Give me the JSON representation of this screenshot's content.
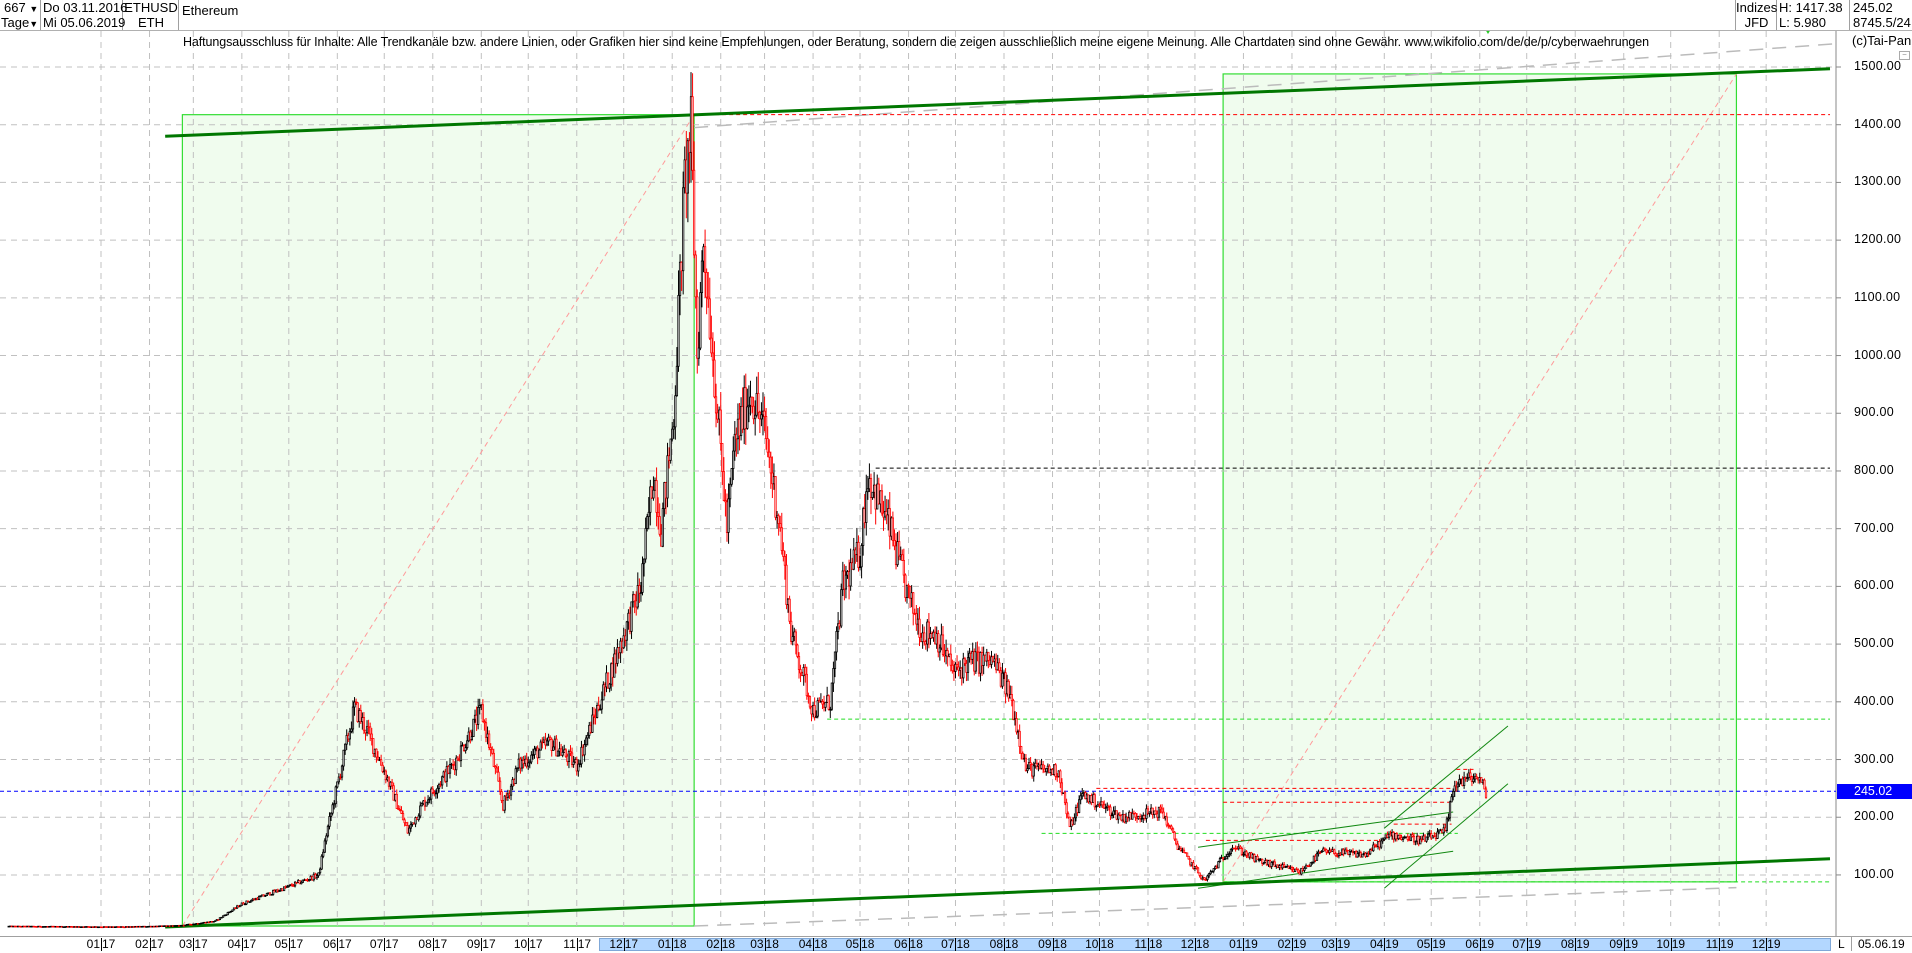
{
  "header": {
    "bars_count": "667",
    "period": "Tage",
    "date_from": "Do 03.11.2016",
    "date_to": "Mi 05.06.2019",
    "symbol": "ETHUSD",
    "symbol_short": "ETH",
    "name": "Ethereum",
    "group": "Indizes",
    "source": "JFD",
    "high": "H: 1417.38",
    "low": "L: 5.980",
    "last": "245.02",
    "extra": "8745.5/24"
  },
  "disclaimer": "Haftungsausschluss für Inhalte: Alle Trendkanäle bzw. andere Linien, oder Grafiken hier sind keine Empfehlungen, oder Beratung, sondern die zeigen ausschließlich meine eigene Meinung. Alle Chartdaten sind ohne Gewähr.  www.wikifolio.com/de/de/p/cyberwaehrungen",
  "copyright": "(c)Tai-Pan",
  "axis_footer": {
    "mode": "L",
    "date": "05.06.19"
  },
  "colors": {
    "up": "#000000",
    "down": "#ff0000",
    "box_fill": "#f0fcee",
    "box_border": "#33dd33",
    "trend_thick": "#007700",
    "current_price": "#0000ff"
  },
  "chart_data": {
    "type": "candlestick",
    "title": "Ethereum",
    "ylim": [
      0,
      1550
    ],
    "grid": true,
    "y_ticks": [
      "1500.00",
      "1400.00",
      "1300.00",
      "1200.00",
      "1100.00",
      "1000.00",
      "900.00",
      "800.00",
      "700.00",
      "600.00",
      "500.00",
      "400.00",
      "300.00",
      "200.00",
      "100.00"
    ],
    "x_ticks": [
      "01 17",
      "02 17",
      "03 17",
      "04 17",
      "05 17",
      "06 17",
      "07 17",
      "08 17",
      "09 17",
      "10 17",
      "11 17",
      "12 17",
      "01 18",
      "02 18",
      "03 18",
      "04 18",
      "05 18",
      "06 18",
      "07 18",
      "08 18",
      "09 18",
      "10 18",
      "11 18",
      "12 18",
      "01 19",
      "02 19",
      "03 19",
      "04 19",
      "05 19",
      "06 19",
      "07 19",
      "08 19",
      "09 19",
      "10 19",
      "11 19",
      "12 19"
    ],
    "current_price": "245.02",
    "approx_closes": [
      [
        "2016-11-03",
        11
      ],
      [
        "2017-01-15",
        10
      ],
      [
        "2017-02-20",
        12
      ],
      [
        "2017-03-15",
        20
      ],
      [
        "2017-04-01",
        50
      ],
      [
        "2017-05-01",
        80
      ],
      [
        "2017-05-20",
        100
      ],
      [
        "2017-05-25",
        170
      ],
      [
        "2017-06-12",
        390
      ],
      [
        "2017-06-20",
        350
      ],
      [
        "2017-07-01",
        280
      ],
      [
        "2017-07-16",
        175
      ],
      [
        "2017-07-25",
        220
      ],
      [
        "2017-08-15",
        295
      ],
      [
        "2017-09-01",
        385
      ],
      [
        "2017-09-15",
        220
      ],
      [
        "2017-09-25",
        290
      ],
      [
        "2017-10-15",
        330
      ],
      [
        "2017-11-01",
        290
      ],
      [
        "2017-11-25",
        470
      ],
      [
        "2017-12-12",
        600
      ],
      [
        "2017-12-20",
        800
      ],
      [
        "2017-12-25",
        700
      ],
      [
        "2018-01-02",
        900
      ],
      [
        "2018-01-09",
        1300
      ],
      [
        "2018-01-13",
        1390
      ],
      [
        "2018-01-17",
        1000
      ],
      [
        "2018-01-21",
        1200
      ],
      [
        "2018-02-05",
        700
      ],
      [
        "2018-02-10",
        850
      ],
      [
        "2018-02-20",
        940
      ],
      [
        "2018-03-01",
        870
      ],
      [
        "2018-03-10",
        720
      ],
      [
        "2018-03-18",
        520
      ],
      [
        "2018-04-01",
        385
      ],
      [
        "2018-04-12",
        400
      ],
      [
        "2018-04-20",
        600
      ],
      [
        "2018-05-01",
        660
      ],
      [
        "2018-05-06",
        795
      ],
      [
        "2018-05-20",
        700
      ],
      [
        "2018-06-01",
        580
      ],
      [
        "2018-06-10",
        520
      ],
      [
        "2018-06-18",
        520
      ],
      [
        "2018-06-30",
        450
      ],
      [
        "2018-07-10",
        470
      ],
      [
        "2018-07-25",
        470
      ],
      [
        "2018-08-05",
        410
      ],
      [
        "2018-08-15",
        285
      ],
      [
        "2018-09-05",
        280
      ],
      [
        "2018-09-12",
        180
      ],
      [
        "2018-09-20",
        240
      ],
      [
        "2018-10-15",
        200
      ],
      [
        "2018-11-10",
        210
      ],
      [
        "2018-11-20",
        150
      ],
      [
        "2018-12-07",
        90
      ],
      [
        "2018-12-25",
        150
      ],
      [
        "2019-01-10",
        125
      ],
      [
        "2019-02-06",
        105
      ],
      [
        "2019-02-20",
        140
      ],
      [
        "2019-03-20",
        135
      ],
      [
        "2019-04-05",
        170
      ],
      [
        "2019-04-25",
        160
      ],
      [
        "2019-05-10",
        175
      ],
      [
        "2019-05-16",
        260
      ],
      [
        "2019-05-30",
        270
      ],
      [
        "2019-06-05",
        245
      ]
    ],
    "drawings": {
      "boxes": [
        {
          "from": "2017-02-22",
          "to": "2018-01-15",
          "low": 8,
          "high": 1417.38
        },
        {
          "from": "2018-12-19",
          "to": "2019-11-12",
          "low": 88,
          "high": 1488
        }
      ],
      "thick_trend_lines": [
        {
          "from": [
            "2017-02-11",
            1380
          ],
          "to": [
            "2020-01-13",
            1497
          ]
        },
        {
          "from": [
            "2017-02-11",
            5
          ],
          "to": [
            "2020-01-13",
            128
          ]
        }
      ],
      "grey_dashed_lines": [
        {
          "from": [
            "2018-01-15",
            1395
          ],
          "to": [
            "2020-01-13",
            1540
          ]
        },
        {
          "from": [
            "2018-01-15",
            3
          ],
          "to": [
            "2019-11-12",
            78
          ]
        }
      ],
      "thin_trend_lines": [
        {
          "from": [
            "2018-12-03",
            148
          ],
          "to": [
            "2019-05-15",
            209
          ]
        },
        {
          "from": [
            "2018-12-03",
            77
          ],
          "to": [
            "2019-05-15",
            141
          ]
        },
        {
          "from": [
            "2019-04-01",
            77
          ],
          "to": [
            "2019-06-19",
            258
          ]
        },
        {
          "from": [
            "2019-04-01",
            181
          ],
          "to": [
            "2019-06-19",
            358
          ]
        }
      ],
      "horizontal_lines": [
        {
          "price": 1417.38,
          "from": "2018-01-15",
          "color": "red"
        },
        {
          "price": 805,
          "from": "2018-05-11",
          "color": "black"
        },
        {
          "price": 370,
          "from": "2018-04-10",
          "color": "green"
        },
        {
          "price": 88,
          "from": "2018-12-19",
          "color": "green"
        },
        {
          "price": 250,
          "from": "2018-09-29",
          "to": "2019-05-15",
          "color": "red"
        },
        {
          "price": 226,
          "from": "2018-12-19",
          "to": "2019-05-15",
          "color": "red"
        },
        {
          "price": 172,
          "from": "2018-08-25",
          "to": "2019-05-18",
          "color": "green"
        },
        {
          "price": 160,
          "from": "2018-12-08",
          "to": "2019-04-02",
          "color": "red"
        },
        {
          "price": 188,
          "from": "2019-04-07",
          "to": "2019-05-14",
          "color": "red"
        },
        {
          "price": 283,
          "from": "2019-05-17",
          "to": "2019-05-28",
          "color": "red"
        }
      ]
    }
  }
}
